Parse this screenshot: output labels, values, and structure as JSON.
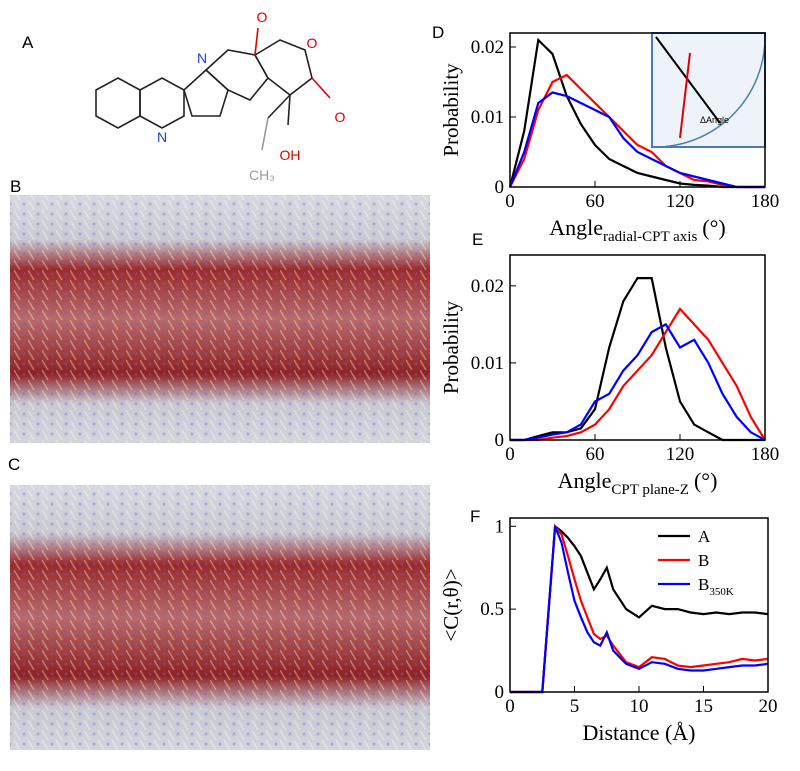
{
  "panel_labels": [
    "A",
    "B",
    "C",
    "D",
    "E",
    "F"
  ],
  "molecule": {
    "atoms": [
      "N",
      "N",
      "O",
      "O",
      "O",
      "OH",
      "CH₃"
    ]
  },
  "chart_data": [
    {
      "type": "line",
      "ylabel": "Probability",
      "xlabel": "Angle",
      "xlabel_sub": "radial-CPT axis",
      "xlabel_unit": "(°)",
      "inset_label": "ΔAngle",
      "x": [
        0,
        10,
        20,
        30,
        40,
        50,
        60,
        70,
        80,
        90,
        100,
        110,
        120,
        130,
        140,
        150,
        160,
        170,
        180
      ],
      "series": [
        {
          "color": "#000000",
          "values": [
            0,
            0.008,
            0.021,
            0.019,
            0.013,
            0.009,
            0.006,
            0.004,
            0.003,
            0.002,
            0.0015,
            0.001,
            0.0005,
            0.0003,
            0.0002,
            0,
            0,
            0,
            0
          ]
        },
        {
          "color": "#ff0000",
          "values": [
            0,
            0.004,
            0.011,
            0.015,
            0.016,
            0.014,
            0.012,
            0.01,
            0.008,
            0.006,
            0.005,
            0.003,
            0.002,
            0.001,
            0.0008,
            0.0003,
            0,
            0,
            0
          ]
        },
        {
          "color": "#0000ff",
          "values": [
            0,
            0.005,
            0.012,
            0.0135,
            0.013,
            0.012,
            0.011,
            0.01,
            0.007,
            0.005,
            0.004,
            0.003,
            0.002,
            0.0015,
            0.001,
            0.0005,
            0,
            0,
            0
          ]
        }
      ],
      "xlim": [
        0,
        180
      ],
      "xticks": [
        0,
        60,
        120,
        180
      ],
      "ylim": [
        0,
        0.022
      ],
      "yticks": [
        0,
        0.01,
        0.02
      ]
    },
    {
      "type": "line",
      "ylabel": "Probability",
      "xlabel": "Angle",
      "xlabel_sub": "CPT plane-Z",
      "xlabel_unit": "(°)",
      "x": [
        0,
        10,
        20,
        30,
        40,
        50,
        60,
        70,
        80,
        90,
        100,
        110,
        120,
        130,
        140,
        150,
        160,
        170,
        180
      ],
      "series": [
        {
          "color": "#000000",
          "values": [
            0,
            0,
            0.0005,
            0.001,
            0.001,
            0.0015,
            0.004,
            0.012,
            0.018,
            0.021,
            0.021,
            0.012,
            0.005,
            0.002,
            0.001,
            0,
            0,
            0,
            0
          ]
        },
        {
          "color": "#ff0000",
          "values": [
            0,
            0,
            0,
            0.0003,
            0.0005,
            0.001,
            0.002,
            0.004,
            0.007,
            0.009,
            0.011,
            0.014,
            0.017,
            0.015,
            0.013,
            0.01,
            0.007,
            0.003,
            0
          ]
        },
        {
          "color": "#0000ff",
          "values": [
            0,
            0,
            0.0003,
            0.0007,
            0.001,
            0.002,
            0.005,
            0.006,
            0.009,
            0.011,
            0.014,
            0.015,
            0.012,
            0.013,
            0.01,
            0.006,
            0.003,
            0.001,
            0
          ]
        }
      ],
      "xlim": [
        0,
        180
      ],
      "xticks": [
        0,
        60,
        120,
        180
      ],
      "ylim": [
        0,
        0.024
      ],
      "yticks": [
        0,
        0.01,
        0.02
      ]
    },
    {
      "type": "line",
      "ylabel": "<C(r,θ)>",
      "xlabel": "Distance (Å)",
      "legend": "upper right",
      "x": [
        0,
        2.5,
        3,
        3.5,
        4,
        4.5,
        5,
        5.5,
        6,
        6.5,
        7,
        7.5,
        8,
        9,
        10,
        11,
        12,
        13,
        14,
        15,
        16,
        17,
        18,
        19,
        20
      ],
      "series": [
        {
          "name": "A",
          "color": "#000000",
          "values": [
            0,
            0,
            0.5,
            1,
            0.97,
            0.93,
            0.88,
            0.82,
            0.72,
            0.62,
            0.68,
            0.75,
            0.62,
            0.5,
            0.45,
            0.52,
            0.5,
            0.5,
            0.48,
            0.47,
            0.48,
            0.47,
            0.48,
            0.48,
            0.47
          ]
        },
        {
          "name": "B",
          "color": "#ff0000",
          "values": [
            0,
            0,
            0.5,
            1,
            0.95,
            0.82,
            0.68,
            0.55,
            0.45,
            0.35,
            0.32,
            0.34,
            0.28,
            0.18,
            0.15,
            0.21,
            0.2,
            0.16,
            0.15,
            0.16,
            0.17,
            0.18,
            0.2,
            0.19,
            0.2
          ]
        },
        {
          "name": "B",
          "name_sub": "350K",
          "color": "#0000ff",
          "values": [
            0,
            0,
            0.5,
            1,
            0.9,
            0.72,
            0.55,
            0.45,
            0.36,
            0.3,
            0.28,
            0.36,
            0.25,
            0.17,
            0.14,
            0.18,
            0.17,
            0.14,
            0.13,
            0.13,
            0.14,
            0.15,
            0.16,
            0.16,
            0.17
          ]
        }
      ],
      "xlim": [
        0,
        20
      ],
      "xticks": [
        0,
        5,
        10,
        15,
        20
      ],
      "ylim": [
        0,
        1.05
      ],
      "yticks": [
        0,
        0.5,
        1
      ]
    }
  ]
}
